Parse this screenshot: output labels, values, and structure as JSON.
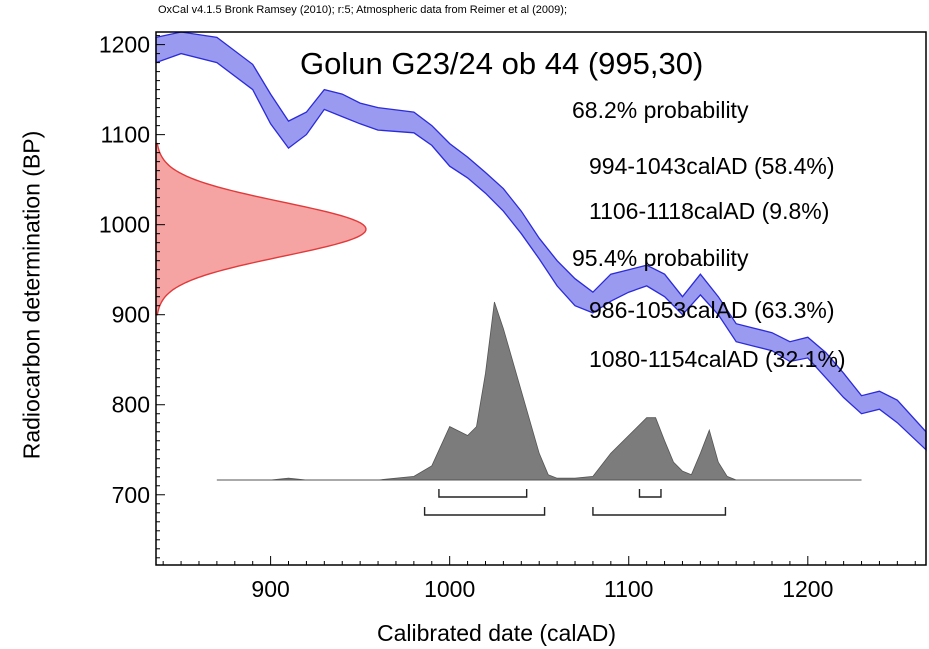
{
  "credit": "OxCal v4.1.5 Bronk Ramsey (2010); r:5; Atmospheric data from Reimer et al (2009);",
  "colors": {
    "curve_fill": "#9a9af0",
    "curve_stroke": "#2b2bd9",
    "radiocarbon_fill": "#f5a3a3",
    "radiocarbon_stroke": "#e23a3a",
    "posterior_fill": "#7c7c7c",
    "axis": "#000000"
  },
  "chart_data": {
    "type": "area",
    "title": "Golun G23/24 ob 44 (995,30)",
    "xlabel": "Calibrated date (calAD)",
    "ylabel": "Radiocarbon determination (BP)",
    "xlim": [
      836,
      1266
    ],
    "ylim": [
      622,
      1214
    ],
    "xticks": [
      900,
      1000,
      1100,
      1200
    ],
    "yticks": [
      700,
      800,
      900,
      1000,
      1100,
      1200
    ],
    "calibration_curve": {
      "x": [
        836,
        850,
        870,
        890,
        900,
        910,
        920,
        930,
        940,
        950,
        960,
        980,
        990,
        1000,
        1010,
        1020,
        1030,
        1040,
        1050,
        1060,
        1070,
        1080,
        1090,
        1100,
        1110,
        1120,
        1130,
        1140,
        1150,
        1160,
        1170,
        1180,
        1190,
        1200,
        1210,
        1220,
        1230,
        1240,
        1250,
        1266
      ],
      "upper": [
        1208,
        1218,
        1208,
        1178,
        1145,
        1115,
        1125,
        1150,
        1145,
        1135,
        1130,
        1125,
        1110,
        1090,
        1075,
        1058,
        1040,
        1015,
        985,
        960,
        940,
        925,
        945,
        950,
        955,
        945,
        920,
        945,
        920,
        890,
        885,
        880,
        870,
        875,
        858,
        835,
        810,
        815,
        805,
        770
      ],
      "lower": [
        1180,
        1190,
        1180,
        1150,
        1112,
        1085,
        1100,
        1128,
        1120,
        1112,
        1105,
        1102,
        1088,
        1065,
        1052,
        1035,
        1015,
        990,
        962,
        932,
        910,
        902,
        915,
        925,
        932,
        920,
        900,
        922,
        900,
        870,
        865,
        860,
        848,
        852,
        830,
        808,
        790,
        795,
        780,
        750
      ]
    },
    "radiocarbon_density": {
      "mean": 995,
      "error": 30,
      "range": [
        900,
        1090
      ]
    },
    "posterior": {
      "x": [
        870,
        900,
        910,
        920,
        960,
        980,
        990,
        1000,
        1010,
        1015,
        1020,
        1025,
        1030,
        1040,
        1050,
        1055,
        1060,
        1070,
        1080,
        1090,
        1100,
        1110,
        1115,
        1120,
        1125,
        1130,
        1135,
        1140,
        1145,
        1150,
        1155,
        1160,
        1190,
        1230
      ],
      "density": [
        0,
        0,
        0.01,
        0,
        0,
        0.02,
        0.08,
        0.3,
        0.25,
        0.3,
        0.6,
        1.0,
        0.85,
        0.5,
        0.15,
        0.03,
        0.01,
        0.01,
        0.02,
        0.15,
        0.25,
        0.35,
        0.35,
        0.22,
        0.1,
        0.05,
        0.03,
        0.15,
        0.28,
        0.1,
        0.02,
        0,
        0,
        0
      ]
    },
    "ranges_68": [
      [
        994,
        1043
      ],
      [
        1106,
        1118
      ]
    ],
    "ranges_95": [
      [
        986,
        1053
      ],
      [
        1080,
        1154
      ]
    ],
    "range_labels": [
      "68.2% probability",
      "994-1043calAD (58.4%)",
      "1106-1118calAD (9.8%)",
      "95.4% probability",
      "986-1053calAD (63.3%)",
      "1080-1154calAD (32.1%)"
    ]
  }
}
